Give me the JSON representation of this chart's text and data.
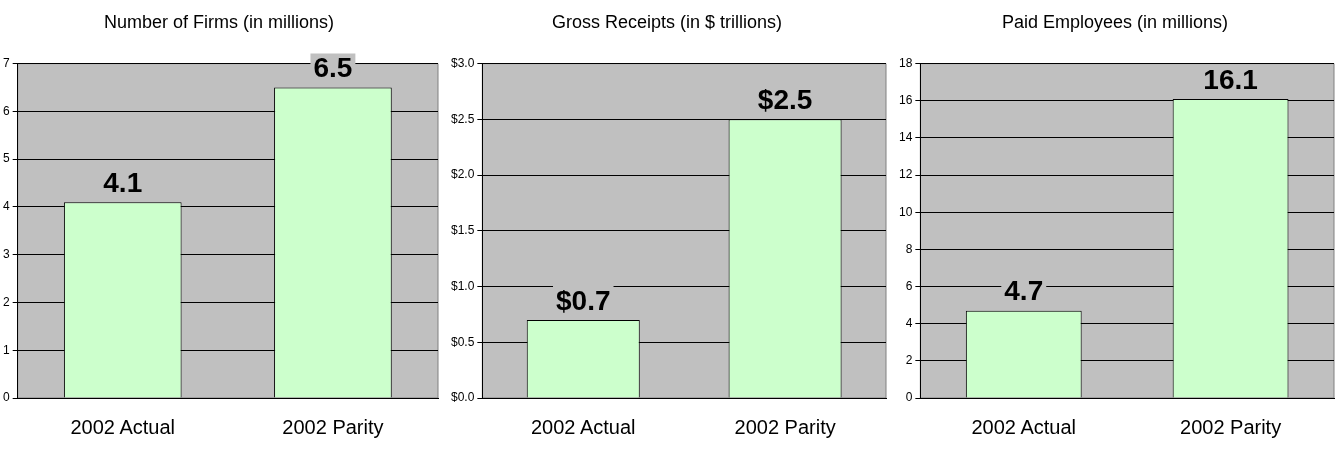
{
  "chart_data": [
    {
      "type": "bar",
      "title": "Number of Firms (in millions)",
      "categories": [
        "2002 Actual",
        "2002 Parity"
      ],
      "values": [
        4.1,
        6.5
      ],
      "color": "#ccffcc",
      "ylim": [
        0,
        7
      ],
      "yticks": [
        0,
        1,
        2,
        3,
        4,
        5,
        6,
        7
      ],
      "grid": "y",
      "data_labels": true
    },
    {
      "type": "bar",
      "title": "Gross Receipts (in $ trillions)",
      "categories": [
        "2002 Actual",
        "2002 Parity"
      ],
      "values": [
        0.7,
        2.5
      ],
      "color": "#ccffcc",
      "ylim": [
        0,
        3
      ],
      "yticks": [
        {
          "value": 0,
          "label": "$0.0"
        },
        {
          "value": 0.5,
          "label": "$0.5"
        },
        {
          "value": 1,
          "label": "$1.0"
        },
        {
          "value": 1.5,
          "label": "$1.5"
        },
        {
          "value": 2,
          "label": "$2.0"
        },
        {
          "value": 2.5,
          "label": "$2.5"
        },
        {
          "value": 3,
          "label": "$3.0"
        }
      ],
      "grid": "y",
      "value_labels": [
        "$0.7",
        "$2.5"
      ]
    },
    {
      "type": "bar",
      "title": "Paid Employees (in millions)",
      "categories": [
        "2002 Actual",
        "2002 Parity"
      ],
      "values": [
        4.7,
        16.1
      ],
      "color": "#ccffcc",
      "ylim": [
        0,
        18
      ],
      "yticks": [
        0,
        2,
        4,
        6,
        8,
        10,
        12,
        14,
        16,
        18
      ],
      "grid": "y",
      "data_labels": true
    }
  ]
}
